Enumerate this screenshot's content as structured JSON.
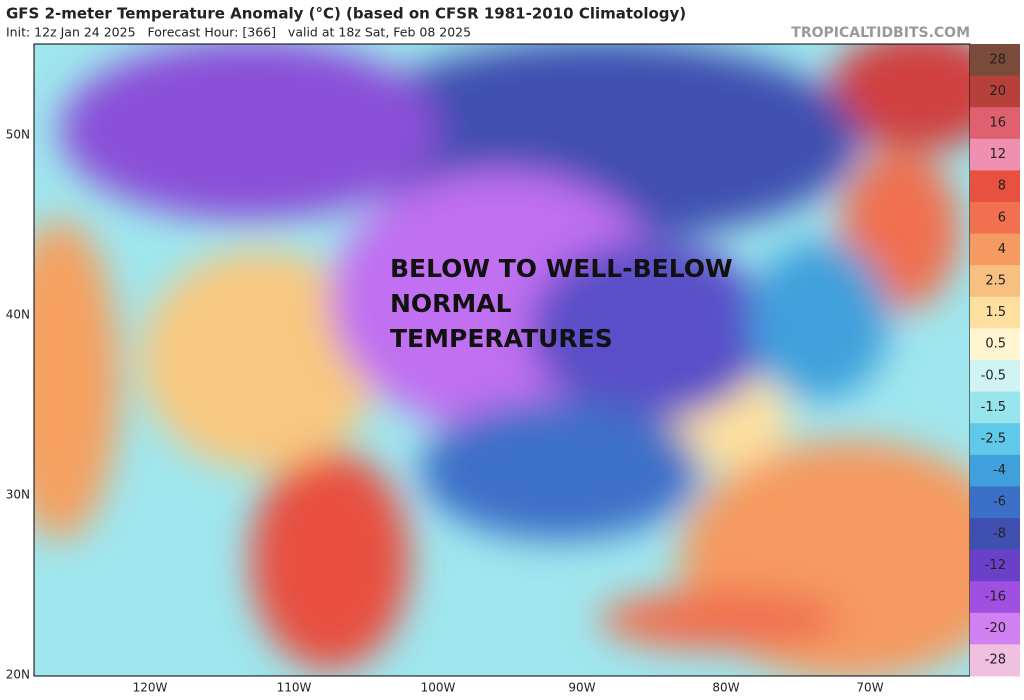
{
  "header": {
    "title": "GFS 2-meter Temperature Anomaly (°C) (based on CFSR 1981-2010 Climatology)",
    "subtitle": "Init: 12z Jan 24 2025   Forecast Hour: [366]   valid at 18z Sat, Feb 08 2025",
    "watermark": "TROPICALTIDBITS.COM"
  },
  "annotation": {
    "lines": [
      "BELOW TO WELL-BELOW",
      "NORMAL",
      "TEMPERATURES"
    ]
  },
  "latitude_labels": [
    "50N",
    "40N",
    "30N",
    "20N"
  ],
  "longitude_labels": [
    "120W",
    "110W",
    "100W",
    "90W",
    "80W",
    "70W"
  ],
  "colorbar": {
    "labels": [
      28,
      20,
      16,
      12,
      8,
      6,
      4,
      2.5,
      1.5,
      0.5,
      -0.5,
      -1.5,
      -2.5,
      -4,
      -6,
      -8,
      -12,
      -16,
      -20,
      -28
    ],
    "colors": [
      "#7a4a3a",
      "#b8403a",
      "#e06070",
      "#f090b0",
      "#e85040",
      "#f07050",
      "#f59a60",
      "#f8c080",
      "#fde0a0",
      "#fff5d0",
      "#d0f4f4",
      "#98e4ec",
      "#60c8e8",
      "#3fa0dc",
      "#3c70c8",
      "#4050b0",
      "#6a40c8",
      "#a050e0",
      "#d080f0",
      "#f0c0e0"
    ]
  }
}
